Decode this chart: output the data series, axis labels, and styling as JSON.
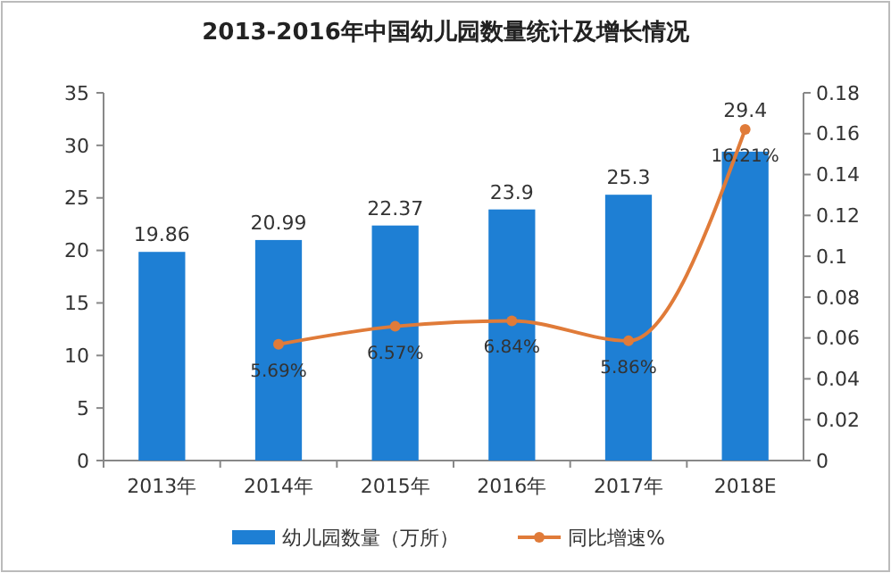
{
  "chart_data": {
    "type": "bar",
    "title": "2013-2016年中国幼儿园数量统计及增长情况",
    "categories": [
      "2013年",
      "2014年",
      "2015年",
      "2016年",
      "2017年",
      "2018E"
    ],
    "series": [
      {
        "name": "幼儿园数量（万所）",
        "color": "#1e7fd4",
        "values": [
          19.86,
          20.99,
          22.37,
          23.9,
          25.3,
          29.4
        ],
        "value_labels": [
          "19.86",
          "20.99",
          "22.37",
          "23.9",
          "25.3",
          "29.4"
        ]
      },
      {
        "name": "同比增速%",
        "type": "line",
        "axis": "y2",
        "color": "#e07b39",
        "marker": "circle",
        "values": [
          null,
          0.0569,
          0.0657,
          0.0684,
          0.0586,
          0.1621
        ],
        "value_labels": [
          null,
          "5.69%",
          "6.57%",
          "6.84%",
          "5.86%",
          "16.21%"
        ]
      }
    ],
    "ylim": [
      0,
      35
    ],
    "yticks": [
      0,
      5,
      10,
      15,
      20,
      25,
      30,
      35
    ],
    "y2lim": [
      0,
      0.18
    ],
    "y2ticks": [
      0,
      {
        "value": 0.02,
        "label": "0.02"
      },
      {
        "value": 0.04,
        "label": "0.04"
      },
      {
        "value": 0.06,
        "label": "0.06"
      },
      {
        "value": 0.08,
        "label": "0.08"
      },
      {
        "value": 0.1,
        "label": "0.1"
      },
      {
        "value": 0.12,
        "label": "0.12"
      },
      {
        "value": 0.14,
        "label": "0.14"
      },
      {
        "value": 0.16,
        "label": "0.16"
      },
      {
        "value": 0.18,
        "label": "0.18"
      }
    ],
    "grid": false,
    "legend": "bottom"
  }
}
